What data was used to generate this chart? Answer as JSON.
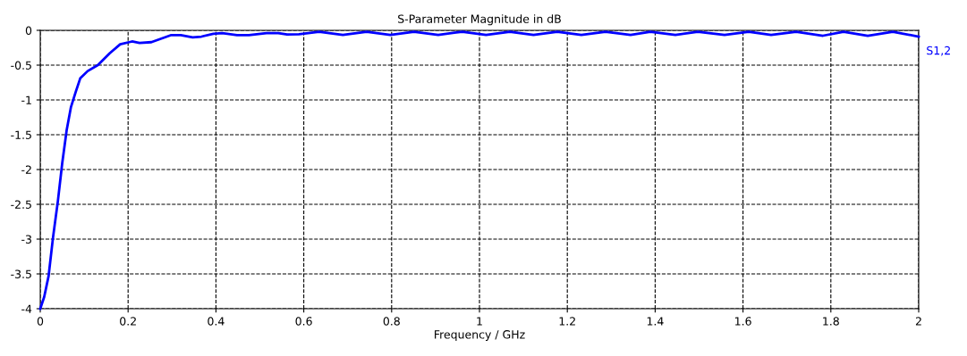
{
  "chart_data": {
    "type": "line",
    "title": "S-Parameter Magnitude in dB",
    "xlabel": "Frequency / GHz",
    "xlim": [
      0,
      2
    ],
    "xticks": [
      0,
      0.2,
      0.4,
      0.6,
      0.8,
      1,
      1.2,
      1.4,
      1.6,
      1.8,
      2
    ],
    "ylim": [
      -4,
      0
    ],
    "yticks": [
      -4,
      -3.5,
      -3,
      -2.5,
      -2,
      -1.5,
      -1,
      -0.5,
      0
    ],
    "grid": true,
    "line_style": "dashed",
    "series": [
      {
        "name": "S1,2",
        "color": "#0000ff",
        "line_style": "solid",
        "x": [
          0,
          0.009,
          0.019,
          0.029,
          0.04,
          0.05,
          0.06,
          0.07,
          0.081,
          0.091,
          0.108,
          0.131,
          0.158,
          0.182,
          0.209,
          0.226,
          0.253,
          0.297,
          0.32,
          0.347,
          0.367,
          0.394,
          0.414,
          0.448,
          0.475,
          0.515,
          0.542,
          0.562,
          0.589,
          0.635,
          0.689,
          0.743,
          0.797,
          0.851,
          0.906,
          0.961,
          1.015,
          1.069,
          1.123,
          1.177,
          1.232,
          1.287,
          1.344,
          1.389,
          1.446,
          1.497,
          1.558,
          1.613,
          1.664,
          1.721,
          1.782,
          1.829,
          1.884,
          1.941,
          2.0
        ],
        "values": [
          -4.0,
          -3.83,
          -3.53,
          -2.98,
          -2.46,
          -1.91,
          -1.44,
          -1.1,
          -0.88,
          -0.69,
          -0.585,
          -0.5,
          -0.33,
          -0.2,
          -0.16,
          -0.18,
          -0.17,
          -0.07,
          -0.07,
          -0.1,
          -0.09,
          -0.05,
          -0.04,
          -0.07,
          -0.07,
          -0.04,
          -0.04,
          -0.06,
          -0.055,
          -0.02,
          -0.065,
          -0.02,
          -0.065,
          -0.02,
          -0.065,
          -0.02,
          -0.065,
          -0.02,
          -0.065,
          -0.02,
          -0.065,
          -0.02,
          -0.065,
          -0.02,
          -0.065,
          -0.02,
          -0.065,
          -0.02,
          -0.065,
          -0.02,
          -0.077,
          -0.02,
          -0.077,
          -0.02,
          -0.09
        ]
      }
    ]
  }
}
